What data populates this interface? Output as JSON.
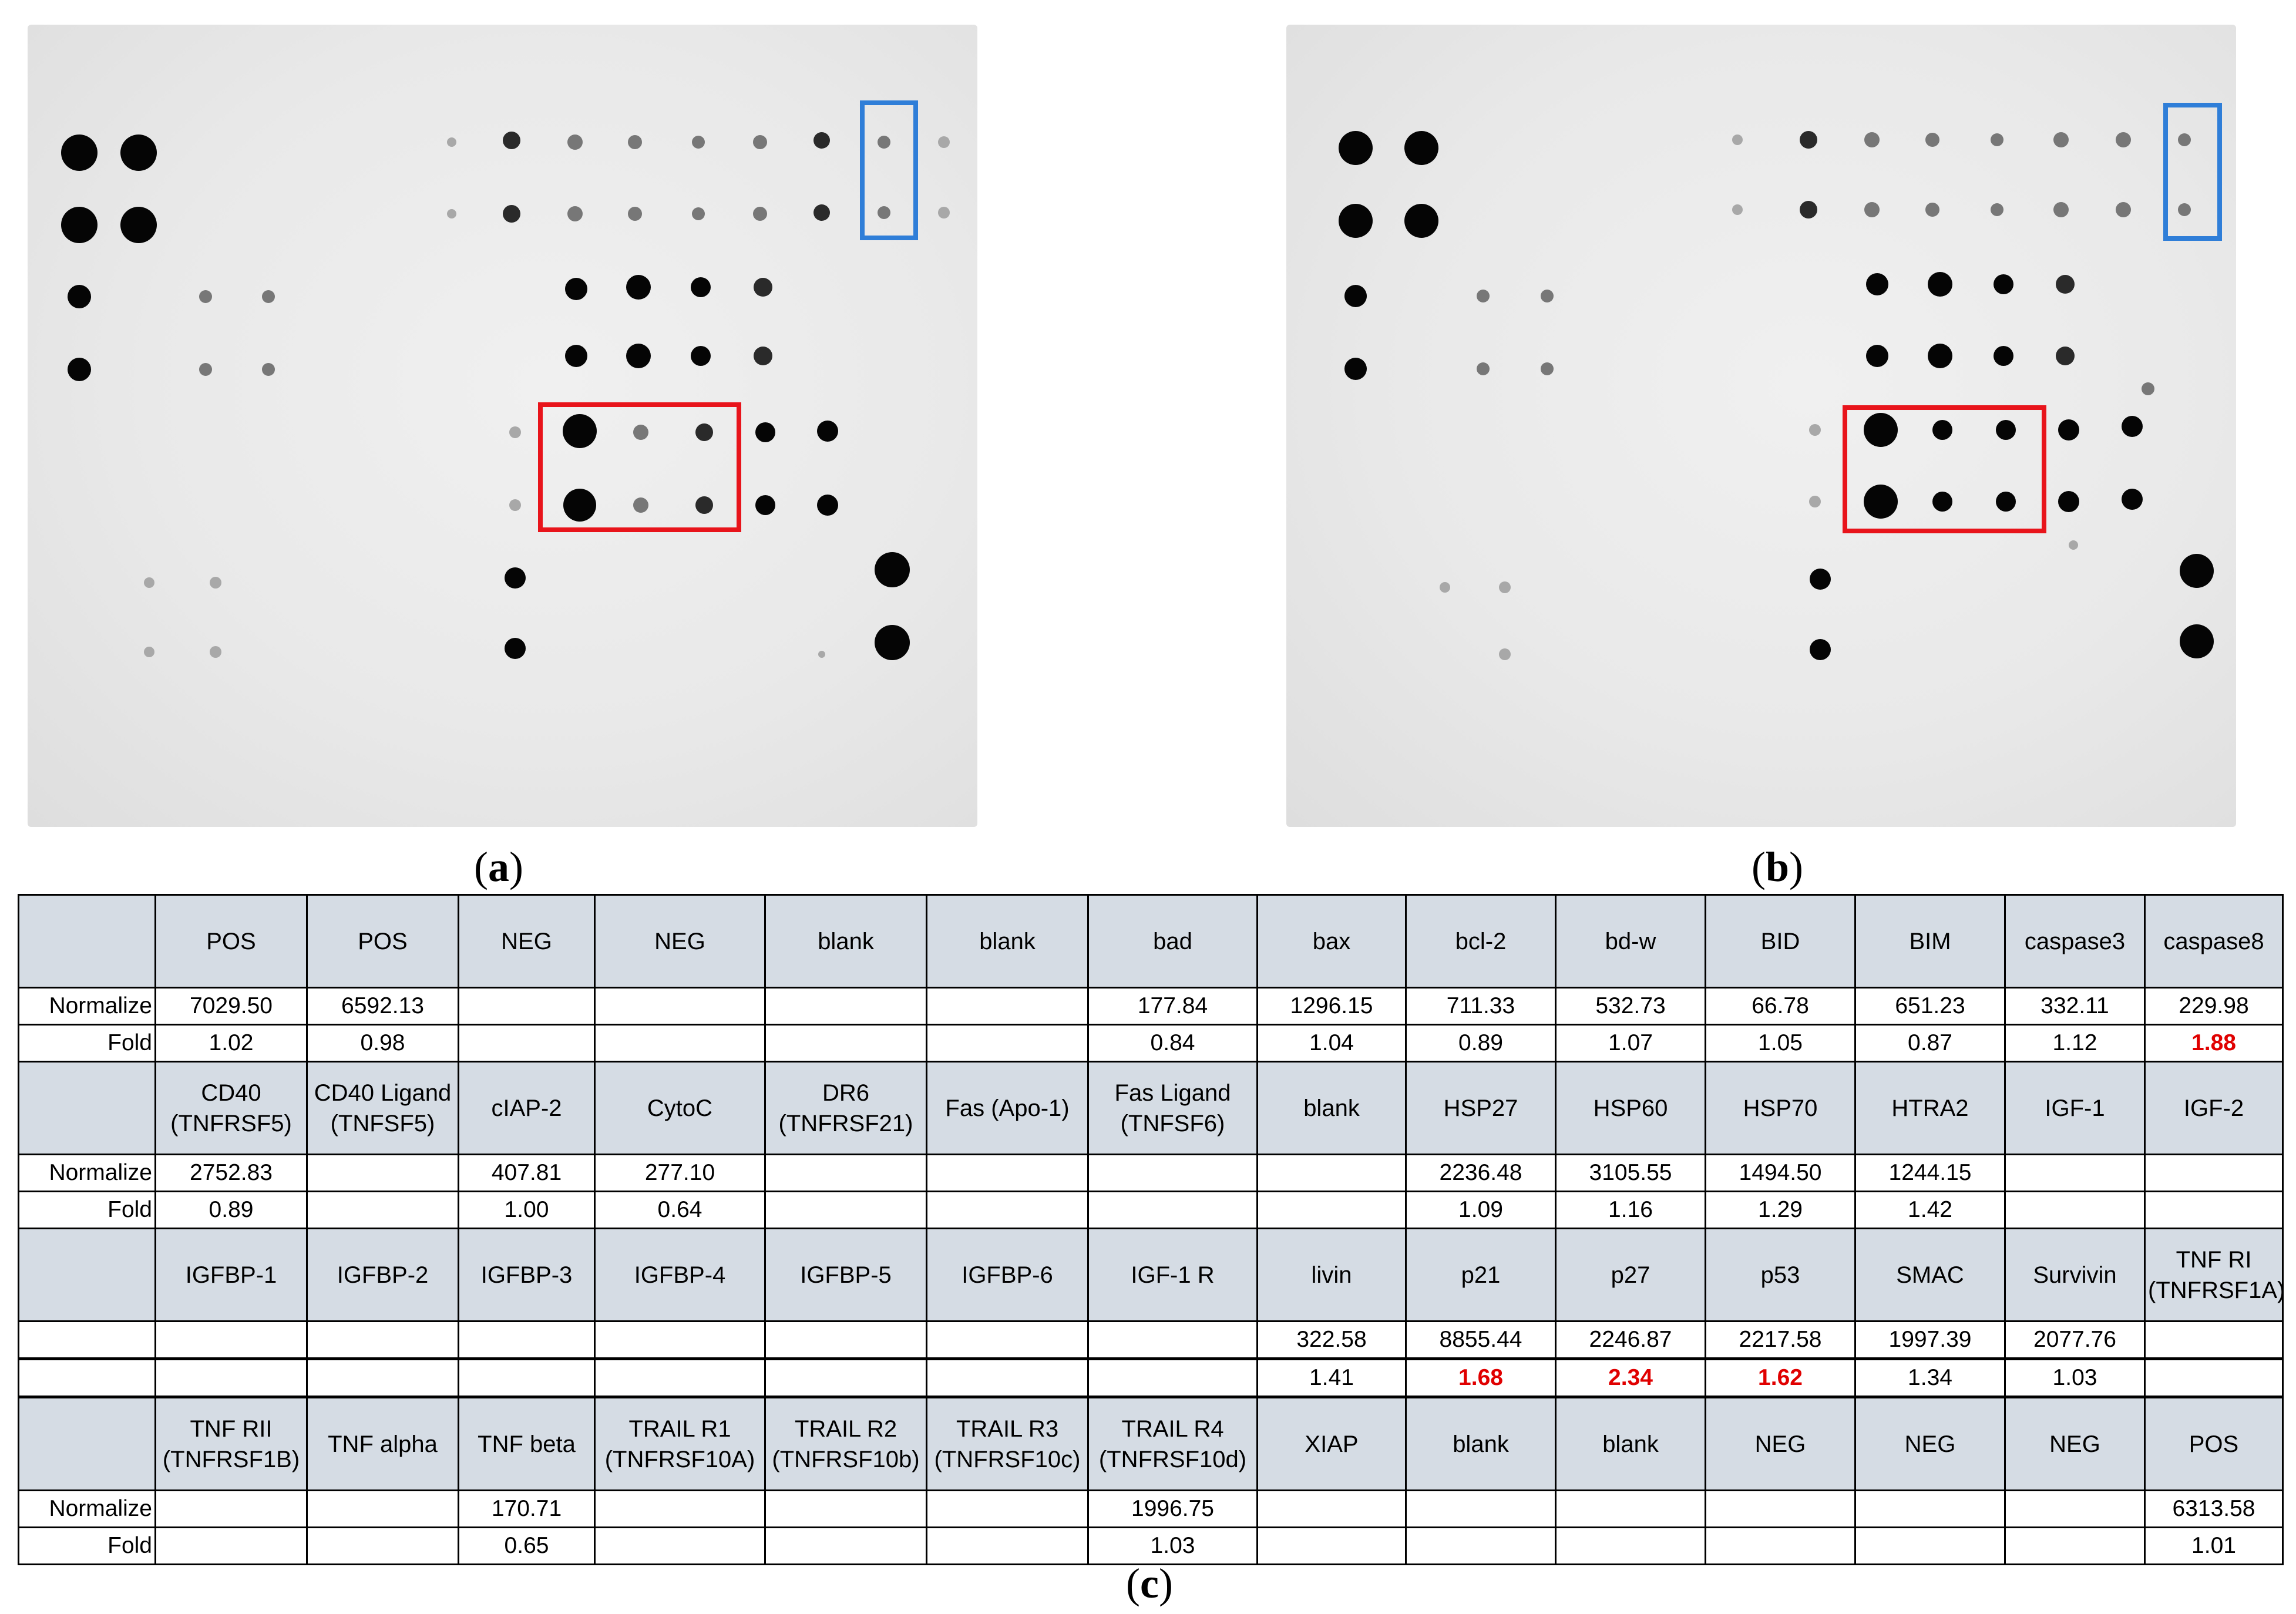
{
  "figure": {
    "panels": [
      {
        "label_open": "(",
        "label_letter": "a",
        "label_close": ")"
      },
      {
        "label_open": "(",
        "label_letter": "b",
        "label_close": ")"
      },
      {
        "label_open": "(",
        "label_letter": "c",
        "label_close": ")"
      }
    ],
    "highlight_colors": {
      "red_box": "#e8141b",
      "blue_box": "#2f7ed8",
      "fold_highlight": "#e00000",
      "header_fill": "#d5dce4"
    }
  },
  "table": {
    "row_labels": {
      "normalize": "Normalize",
      "fold": "Fold"
    },
    "blocks": [
      {
        "headers": [
          "POS",
          "POS",
          "NEG",
          "NEG",
          "blank",
          "blank",
          "bad",
          "bax",
          "bcl-2",
          "bd-w",
          "BID",
          "BIM",
          "caspase3",
          "caspase8"
        ],
        "show_labels": true,
        "normalize": [
          "7029.50",
          "6592.13",
          "",
          "",
          "",
          "",
          "177.84",
          "1296.15",
          "711.33",
          "532.73",
          "66.78",
          "651.23",
          "332.11",
          "229.98"
        ],
        "fold": [
          "1.02",
          "0.98",
          "",
          "",
          "",
          "",
          "0.84",
          "1.04",
          "0.89",
          "1.07",
          "1.05",
          "0.87",
          "1.12",
          "1.88"
        ],
        "fold_highlight": [
          13
        ]
      },
      {
        "headers": [
          "CD40\n(TNFRSF5)",
          "CD40 Ligand\n(TNFSF5)",
          "cIAP-2",
          "CytoC",
          "DR6\n(TNFRSF21)",
          "Fas (Apo-1)",
          "Fas Ligand\n(TNFSF6)",
          "blank",
          "HSP27",
          "HSP60",
          "HSP70",
          "HTRA2",
          "IGF-1",
          "IGF-2"
        ],
        "show_labels": true,
        "normalize": [
          "2752.83",
          "",
          "407.81",
          "277.10",
          "",
          "",
          "",
          "",
          "2236.48",
          "3105.55",
          "1494.50",
          "1244.15",
          "",
          ""
        ],
        "fold": [
          "0.89",
          "",
          "1.00",
          "0.64",
          "",
          "",
          "",
          "",
          "1.09",
          "1.16",
          "1.29",
          "1.42",
          "",
          ""
        ],
        "fold_highlight": []
      },
      {
        "headers": [
          "IGFBP-1",
          "IGFBP-2",
          "IGFBP-3",
          "IGFBP-4",
          "IGFBP-5",
          "IGFBP-6",
          "IGF-1 R",
          "livin",
          "p21",
          "p27",
          "p53",
          "SMAC",
          "Survivin",
          "TNF RI\n(TNFRSF1A)"
        ],
        "show_labels": false,
        "normalize": [
          "",
          "",
          "",
          "",
          "",
          "",
          "",
          "322.58",
          "8855.44",
          "2246.87",
          "2217.58",
          "1997.39",
          "2077.76",
          ""
        ],
        "fold": [
          "",
          "",
          "",
          "",
          "",
          "",
          "",
          "1.41",
          "1.68",
          "2.34",
          "1.62",
          "1.34",
          "1.03",
          ""
        ],
        "fold_highlight": [
          8,
          9,
          10
        ]
      },
      {
        "headers": [
          "TNF RII\n(TNFRSF1B)",
          "TNF alpha",
          "TNF beta",
          "TRAIL R1\n(TNFRSF10A)",
          "TRAIL R2\n(TNFRSF10b)",
          "TRAIL R3\n(TNFRSF10c)",
          "TRAIL R4\n(TNFRSF10d)",
          "XIAP",
          "blank",
          "blank",
          "NEG",
          "NEG",
          "NEG",
          "POS"
        ],
        "show_labels": true,
        "normalize": [
          "",
          "",
          "170.71",
          "",
          "",
          "",
          "1996.75",
          "",
          "",
          "",
          "",
          "",
          "",
          "6313.58"
        ],
        "fold": [
          "",
          "",
          "0.65",
          "",
          "",
          "",
          "1.03",
          "",
          "",
          "",
          "",
          "",
          "",
          "1.01"
        ],
        "fold_highlight": []
      }
    ]
  },
  "blots": {
    "a": {
      "spots": [
        [
          88,
          218,
          31
        ],
        [
          189,
          218,
          31
        ],
        [
          88,
          341,
          31
        ],
        [
          189,
          341,
          31
        ],
        [
          88,
          463,
          20
        ],
        [
          88,
          587,
          20
        ],
        [
          303,
          463,
          11
        ],
        [
          410,
          463,
          11
        ],
        [
          303,
          587,
          11
        ],
        [
          410,
          587,
          11
        ],
        [
          722,
          200,
          8
        ],
        [
          824,
          197,
          15
        ],
        [
          932,
          200,
          13
        ],
        [
          1034,
          200,
          12
        ],
        [
          1142,
          200,
          11
        ],
        [
          1247,
          200,
          12
        ],
        [
          1352,
          197,
          14
        ],
        [
          1458,
          200,
          11
        ],
        [
          1560,
          200,
          10
        ],
        [
          722,
          322,
          8
        ],
        [
          824,
          322,
          15
        ],
        [
          932,
          322,
          13
        ],
        [
          1034,
          322,
          12
        ],
        [
          1142,
          322,
          11
        ],
        [
          1247,
          322,
          12
        ],
        [
          1352,
          320,
          14
        ],
        [
          1458,
          320,
          11
        ],
        [
          1560,
          320,
          10
        ],
        [
          934,
          450,
          19
        ],
        [
          1040,
          447,
          21
        ],
        [
          1146,
          447,
          17
        ],
        [
          1252,
          447,
          16
        ],
        [
          934,
          564,
          19
        ],
        [
          1040,
          564,
          21
        ],
        [
          1146,
          564,
          17
        ],
        [
          1252,
          564,
          16
        ],
        [
          830,
          694,
          10
        ],
        [
          940,
          692,
          29
        ],
        [
          1044,
          694,
          13
        ],
        [
          1152,
          694,
          15
        ],
        [
          1256,
          694,
          17
        ],
        [
          1362,
          692,
          18
        ],
        [
          830,
          818,
          10
        ],
        [
          940,
          818,
          28
        ],
        [
          1044,
          818,
          13
        ],
        [
          1152,
          818,
          15
        ],
        [
          1256,
          818,
          17
        ],
        [
          1362,
          818,
          18
        ],
        [
          207,
          950,
          9
        ],
        [
          320,
          950,
          10
        ],
        [
          830,
          942,
          18
        ],
        [
          1472,
          928,
          30
        ],
        [
          207,
          1068,
          9
        ],
        [
          320,
          1068,
          10
        ],
        [
          830,
          1062,
          18
        ],
        [
          1472,
          1052,
          30
        ],
        [
          1352,
          1072,
          6
        ]
      ],
      "red_box": [
        873,
        647,
        1211,
        860
      ],
      "blue_box": [
        1421,
        133,
        1512,
        363
      ]
    },
    "b": {
      "spots": [
        [
          118,
          210,
          29
        ],
        [
          230,
          210,
          29
        ],
        [
          118,
          334,
          29
        ],
        [
          230,
          334,
          29
        ],
        [
          118,
          462,
          19
        ],
        [
          118,
          586,
          19
        ],
        [
          335,
          462,
          11
        ],
        [
          444,
          462,
          11
        ],
        [
          335,
          586,
          11
        ],
        [
          444,
          586,
          11
        ],
        [
          768,
          196,
          9
        ],
        [
          889,
          196,
          15
        ],
        [
          997,
          196,
          13
        ],
        [
          1100,
          196,
          12
        ],
        [
          1210,
          196,
          11
        ],
        [
          1319,
          196,
          13
        ],
        [
          1425,
          196,
          13
        ],
        [
          1529,
          196,
          11
        ],
        [
          768,
          315,
          9
        ],
        [
          889,
          315,
          15
        ],
        [
          997,
          315,
          13
        ],
        [
          1100,
          315,
          12
        ],
        [
          1210,
          315,
          11
        ],
        [
          1319,
          315,
          13
        ],
        [
          1425,
          315,
          13
        ],
        [
          1529,
          315,
          11
        ],
        [
          1006,
          442,
          19
        ],
        [
          1113,
          442,
          21
        ],
        [
          1221,
          442,
          17
        ],
        [
          1326,
          442,
          16
        ],
        [
          1006,
          564,
          19
        ],
        [
          1113,
          564,
          21
        ],
        [
          1221,
          564,
          17
        ],
        [
          1326,
          564,
          16
        ],
        [
          900,
          690,
          10
        ],
        [
          1012,
          690,
          29
        ],
        [
          1117,
          690,
          17
        ],
        [
          1225,
          690,
          17
        ],
        [
          1332,
          690,
          18
        ],
        [
          1440,
          684,
          18
        ],
        [
          1467,
          620,
          11
        ],
        [
          900,
          812,
          10
        ],
        [
          1012,
          812,
          29
        ],
        [
          1117,
          812,
          17
        ],
        [
          1225,
          812,
          17
        ],
        [
          1332,
          812,
          18
        ],
        [
          1440,
          808,
          18
        ],
        [
          270,
          958,
          9
        ],
        [
          372,
          958,
          10
        ],
        [
          909,
          944,
          18
        ],
        [
          1550,
          930,
          29
        ],
        [
          372,
          1072,
          10
        ],
        [
          909,
          1064,
          18
        ],
        [
          1550,
          1050,
          29
        ],
        [
          1340,
          886,
          8
        ]
      ],
      "red_box": [
        951,
        652,
        1290,
        862
      ],
      "blue_box": [
        1497,
        137,
        1589,
        364
      ]
    }
  }
}
